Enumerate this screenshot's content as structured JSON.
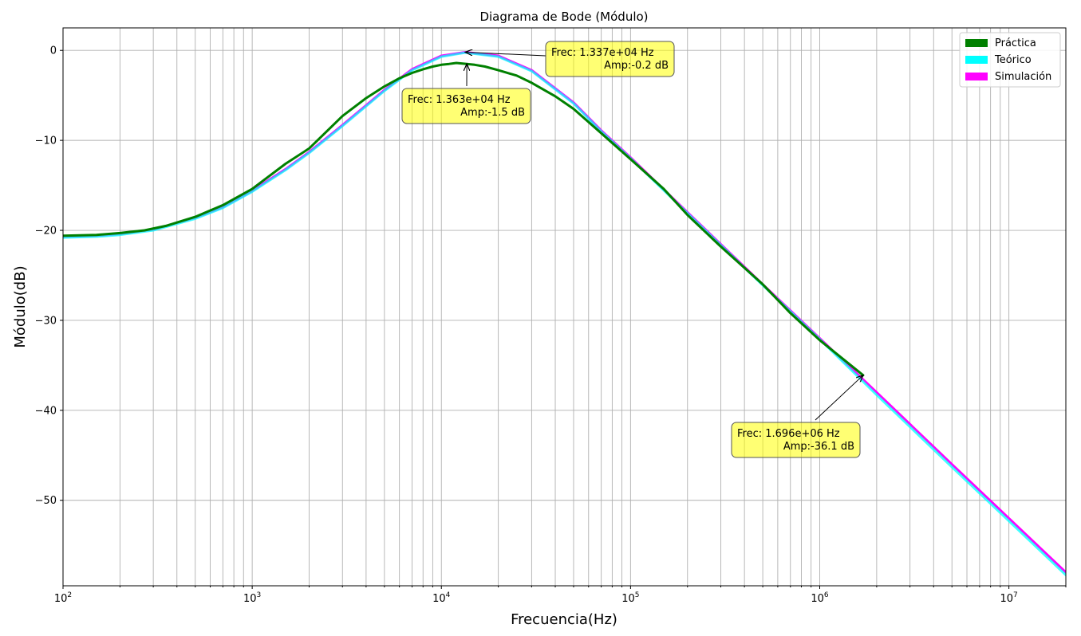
{
  "chart_data": {
    "type": "line",
    "title": "Diagrama de Bode (Módulo)",
    "xlabel": "Frecuencia(Hz)",
    "ylabel": "Módulo(dB)",
    "xscale": "log",
    "xlim": [
      100,
      20000000
    ],
    "ylim": [
      -59.5,
      2.5
    ],
    "x_ticks": [
      {
        "value": 100,
        "base": "10",
        "exp": "2"
      },
      {
        "value": 1000,
        "base": "10",
        "exp": "3"
      },
      {
        "value": 10000,
        "base": "10",
        "exp": "4"
      },
      {
        "value": 100000,
        "base": "10",
        "exp": "5"
      },
      {
        "value": 1000000,
        "base": "10",
        "exp": "6"
      },
      {
        "value": 10000000,
        "base": "10",
        "exp": "7"
      }
    ],
    "y_ticks": [
      {
        "value": 0,
        "label": "0"
      },
      {
        "value": -10,
        "label": "−10"
      },
      {
        "value": -20,
        "label": "−20"
      },
      {
        "value": -30,
        "label": "−30"
      },
      {
        "value": -40,
        "label": "−40"
      },
      {
        "value": -50,
        "label": "−50"
      }
    ],
    "grid": true,
    "legend_position": "top-right",
    "series": [
      {
        "name": "Simulación",
        "color": "#ff00ff",
        "x": [
          100,
          150,
          200,
          300,
          500,
          700,
          1000,
          1500,
          2000,
          3000,
          5000,
          7000,
          10000,
          13370,
          20000,
          30000,
          50000,
          70000,
          100000,
          200000,
          500000,
          1000000,
          2000000,
          5000000,
          10000000,
          20000000
        ],
        "y": [
          -20.7,
          -20.6,
          -20.4,
          -19.9,
          -18.6,
          -17.4,
          -15.6,
          -13.2,
          -11.3,
          -8.3,
          -4.4,
          -2.1,
          -0.6,
          -0.2,
          -0.6,
          -2.2,
          -5.8,
          -8.9,
          -11.9,
          -18.0,
          -26.0,
          -32.0,
          -38.0,
          -46.0,
          -52.0,
          -58.0
        ]
      },
      {
        "name": "Teórico",
        "color": "#00ffff",
        "x": [
          100,
          150,
          200,
          300,
          500,
          700,
          1000,
          1500,
          2000,
          3000,
          5000,
          7000,
          10000,
          13370,
          20000,
          30000,
          50000,
          70000,
          100000,
          200000,
          500000,
          1000000,
          2000000,
          5000000,
          10000000,
          20000000
        ],
        "y": [
          -20.8,
          -20.7,
          -20.5,
          -20.0,
          -18.7,
          -17.5,
          -15.7,
          -13.3,
          -11.4,
          -8.4,
          -4.5,
          -2.2,
          -0.7,
          -0.25,
          -0.7,
          -2.3,
          -5.9,
          -9.0,
          -12.0,
          -18.1,
          -26.1,
          -32.1,
          -38.3,
          -46.3,
          -52.3,
          -58.3
        ]
      },
      {
        "name": "Práctica",
        "color": "#008000",
        "x": [
          100,
          150,
          200,
          270,
          350,
          500,
          700,
          1000,
          1500,
          2000,
          3000,
          4000,
          5000,
          6000,
          7000,
          8000,
          9000,
          10000,
          11000,
          12000,
          13630,
          15000,
          17000,
          20000,
          25000,
          30000,
          40000,
          50000,
          70000,
          100000,
          150000,
          200000,
          300000,
          500000,
          700000,
          1000000,
          1696000
        ],
        "y": [
          -20.6,
          -20.5,
          -20.3,
          -20.0,
          -19.5,
          -18.5,
          -17.2,
          -15.4,
          -12.6,
          -10.9,
          -7.3,
          -5.3,
          -4.0,
          -3.1,
          -2.5,
          -2.1,
          -1.8,
          -1.6,
          -1.5,
          -1.4,
          -1.5,
          -1.6,
          -1.8,
          -2.2,
          -2.8,
          -3.6,
          -5.1,
          -6.5,
          -9.2,
          -12.1,
          -15.4,
          -18.3,
          -21.8,
          -26.0,
          -29.2,
          -32.2,
          -36.1
        ]
      }
    ],
    "annotations": [
      {
        "line1": "Frec: 1.337e+04  Hz",
        "line2": "Amp:-0.2 dB",
        "x": 13370,
        "y": -0.2
      },
      {
        "line1": "Frec: 1.363e+04  Hz",
        "line2": "Amp:-1.5 dB",
        "x": 13630,
        "y": -1.5
      },
      {
        "line1": "Frec: 1.696e+06  Hz",
        "line2": "Amp:-36.1 dB",
        "x": 1696000,
        "y": -36.1
      }
    ]
  }
}
